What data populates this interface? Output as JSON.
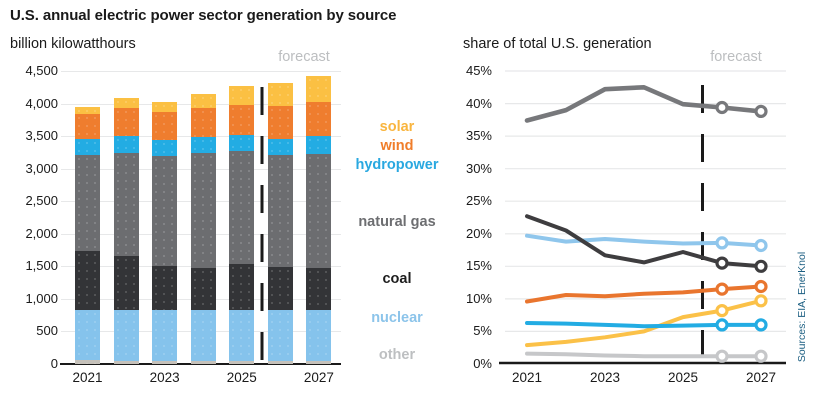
{
  "title": "U.S. annual electric power sector generation by source",
  "source_note": "Sources: EIA, EnerKnol",
  "left_chart": {
    "subtitle": "billion kilowatthours",
    "forecast_label": "forecast",
    "y_ticks": [
      "0",
      "500",
      "1,000",
      "1,500",
      "2,000",
      "2,500",
      "3,000",
      "3,500",
      "4,000",
      "4,500"
    ],
    "x_ticks": [
      "2021",
      "2023",
      "2025",
      "2027"
    ]
  },
  "right_chart": {
    "title": "share of total U.S. generation",
    "forecast_label": "forecast",
    "y_ticks": [
      "0%",
      "5%",
      "10%",
      "15%",
      "20%",
      "25%",
      "30%",
      "35%",
      "40%",
      "45%"
    ],
    "x_ticks": [
      "2021",
      "2023",
      "2025",
      "2027"
    ]
  },
  "legend": {
    "items": [
      {
        "label": "solar",
        "color": "#F9B53F"
      },
      {
        "label": "wind",
        "color": "#F07D2A"
      },
      {
        "label": "hydropower",
        "color": "#29A8E0"
      },
      {
        "label": "natural gas",
        "color": "#6D6E71"
      },
      {
        "label": "coal",
        "color": "#1E1E1E"
      },
      {
        "label": "nuclear",
        "color": "#8CC4EA"
      },
      {
        "label": "other",
        "color": "#BDBFC1"
      }
    ]
  },
  "chart_data": [
    {
      "type": "bar",
      "stacked": true,
      "title": "billion kilowatthours",
      "categories": [
        2021,
        2022,
        2023,
        2024,
        2025,
        2026,
        2027
      ],
      "series": [
        {
          "name": "other",
          "color": "#C5C1BA",
          "values": [
            55,
            50,
            50,
            50,
            45,
            45,
            45
          ]
        },
        {
          "name": "nuclear",
          "color": "#85C3EC",
          "values": [
            780,
            775,
            775,
            780,
            780,
            780,
            785
          ]
        },
        {
          "name": "coal",
          "color": "#333437",
          "values": [
            900,
            830,
            675,
            650,
            710,
            660,
            650
          ]
        },
        {
          "name": "natural gas",
          "color": "#6C6D70",
          "values": [
            1475,
            1590,
            1700,
            1760,
            1740,
            1720,
            1750
          ]
        },
        {
          "name": "hydropower",
          "color": "#23ACE3",
          "values": [
            250,
            255,
            240,
            240,
            240,
            255,
            265
          ]
        },
        {
          "name": "wind",
          "color": "#EF7D2E",
          "values": [
            380,
            435,
            425,
            450,
            470,
            500,
            525
          ]
        },
        {
          "name": "solar",
          "color": "#FBC043",
          "values": [
            115,
            145,
            165,
            220,
            285,
            350,
            405
          ]
        }
      ],
      "ylim": [
        0,
        4500
      ],
      "y_step": 500,
      "forecast_divider_after": 2025
    },
    {
      "type": "line",
      "title": "share of total U.S. generation",
      "unit": "%",
      "x": [
        2021,
        2022,
        2023,
        2024,
        2025,
        2026,
        2027
      ],
      "series": [
        {
          "name": "other",
          "color": "#C6C7C9",
          "values": [
            1.6,
            1.5,
            1.3,
            1.2,
            1.2,
            1.2,
            1.2
          ]
        },
        {
          "name": "solar",
          "color": "#FBC148",
          "values": [
            2.9,
            3.4,
            4.1,
            5.0,
            7.2,
            8.2,
            9.7
          ]
        },
        {
          "name": "hydropower",
          "color": "#23ACE3",
          "values": [
            6.3,
            6.2,
            6.0,
            5.8,
            5.9,
            6.0,
            6.0
          ]
        },
        {
          "name": "wind",
          "color": "#E9752E",
          "values": [
            9.6,
            10.6,
            10.4,
            10.8,
            11.0,
            11.5,
            11.9
          ]
        },
        {
          "name": "nuclear",
          "color": "#8FC6EC",
          "values": [
            19.7,
            18.8,
            19.2,
            18.8,
            18.5,
            18.6,
            18.2
          ]
        },
        {
          "name": "coal",
          "color": "#3E3D3F",
          "values": [
            22.7,
            20.5,
            16.7,
            15.6,
            17.2,
            15.5,
            15.0
          ]
        },
        {
          "name": "natural gas",
          "color": "#77787B",
          "values": [
            37.4,
            39.0,
            42.2,
            42.5,
            39.9,
            39.4,
            38.8
          ]
        }
      ],
      "ylim": [
        0,
        45
      ],
      "y_step": 5,
      "forecast_divider_after": 2025,
      "forecast_marker_years": [
        2026,
        2027
      ],
      "marker_style": "open-circle"
    }
  ]
}
